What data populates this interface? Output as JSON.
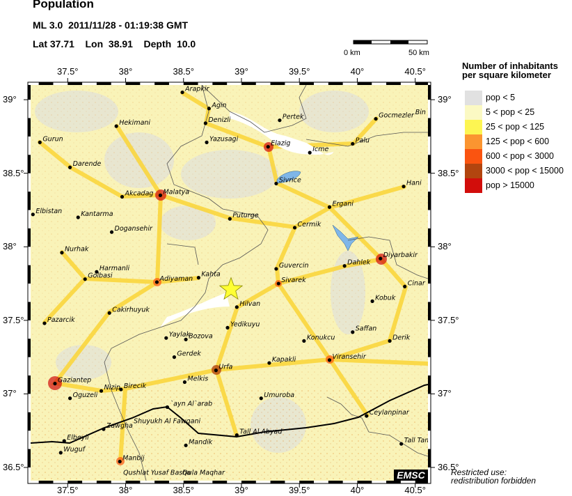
{
  "header": {
    "title": "Population",
    "event_line": "ML 3.0  2011/11/28 - 01:19:38 GMT",
    "location_line": "Lat 37.71    Lon  38.91    Depth  10.0"
  },
  "event": {
    "magnitude": "ML 3.0",
    "date": "2011/11/28",
    "time": "01:19:38 GMT",
    "lat": 37.71,
    "lon": 38.91,
    "depth": 10.0,
    "marker_color": "#ffff33"
  },
  "scale_bar": {
    "start_label": "0 km",
    "end_label": "50 km"
  },
  "axes": {
    "lon_ticks": [
      {
        "value": 37.5,
        "label": "37.5°"
      },
      {
        "value": 38,
        "label": "38°"
      },
      {
        "value": 38.5,
        "label": "38.5°"
      },
      {
        "value": 39,
        "label": "39°"
      },
      {
        "value": 39.5,
        "label": "39.5°"
      },
      {
        "value": 40,
        "label": "40°"
      },
      {
        "value": 40.5,
        "label": "40.5°"
      }
    ],
    "lat_ticks": [
      {
        "value": 39,
        "label": "39°"
      },
      {
        "value": 38.5,
        "label": "38.5°"
      },
      {
        "value": 38,
        "label": "38°"
      },
      {
        "value": 37.5,
        "label": "37.5°"
      },
      {
        "value": 37,
        "label": "37°"
      },
      {
        "value": 36.5,
        "label": "36.5°"
      }
    ],
    "lon_range": [
      37.18,
      40.61
    ],
    "lat_range": [
      36.41,
      39.1
    ]
  },
  "legend": {
    "title_line1": "Number of inhabitants",
    "title_line2": "per square kilometer",
    "items": [
      {
        "label": "pop < 5",
        "color": "#e1e1e1"
      },
      {
        "label": "5 < pop < 25",
        "color": "#fbf9c3"
      },
      {
        "label": "25 < pop < 125",
        "color": "#fdf552"
      },
      {
        "label": "125 < pop < 600",
        "color": "#fb9530"
      },
      {
        "label": "600 < pop < 3000",
        "color": "#fa5410"
      },
      {
        "label": "3000 < pop < 15000",
        "color": "#b2450f"
      },
      {
        "label": "pop > 15000",
        "color": "#d20d0b"
      }
    ]
  },
  "cities": [
    {
      "name": "Arapkir",
      "lon": 38.49,
      "lat": 39.05
    },
    {
      "name": "Agin",
      "lon": 38.72,
      "lat": 38.94
    },
    {
      "name": "Denizli",
      "lon": 38.69,
      "lat": 38.84
    },
    {
      "name": "Pertek",
      "lon": 39.33,
      "lat": 38.86
    },
    {
      "name": "Hekimani",
      "lon": 37.92,
      "lat": 38.82
    },
    {
      "name": "Gurun",
      "lon": 37.26,
      "lat": 38.71
    },
    {
      "name": "Yazusagi",
      "lon": 38.7,
      "lat": 38.71
    },
    {
      "name": "Elazig",
      "lon": 39.23,
      "lat": 38.68
    },
    {
      "name": "Icme",
      "lon": 39.59,
      "lat": 38.64
    },
    {
      "name": "Palu",
      "lon": 39.96,
      "lat": 38.7
    },
    {
      "name": "Gocmezler",
      "lon": 40.16,
      "lat": 38.87
    },
    {
      "name": "Darende",
      "lon": 37.52,
      "lat": 38.54
    },
    {
      "name": "Sivrice",
      "lon": 39.3,
      "lat": 38.43
    },
    {
      "name": "Hani",
      "lon": 40.4,
      "lat": 38.41
    },
    {
      "name": "Akcadag",
      "lon": 37.97,
      "lat": 38.34
    },
    {
      "name": "Malatya",
      "lon": 38.3,
      "lat": 38.35
    },
    {
      "name": "Elbistan",
      "lon": 37.2,
      "lat": 38.22
    },
    {
      "name": "Kantarma",
      "lon": 37.59,
      "lat": 38.2
    },
    {
      "name": "Puturge",
      "lon": 38.9,
      "lat": 38.19
    },
    {
      "name": "Ergani",
      "lon": 39.76,
      "lat": 38.27
    },
    {
      "name": "Cermik",
      "lon": 39.46,
      "lat": 38.13
    },
    {
      "name": "Dogansehir",
      "lon": 37.88,
      "lat": 38.1
    },
    {
      "name": "Nurhak",
      "lon": 37.45,
      "lat": 37.96
    },
    {
      "name": "Diyarbakir",
      "lon": 40.2,
      "lat": 37.92
    },
    {
      "name": "Harmanli",
      "lon": 37.75,
      "lat": 37.83
    },
    {
      "name": "Golbasi",
      "lon": 37.65,
      "lat": 37.78
    },
    {
      "name": "Adiyaman",
      "lon": 38.27,
      "lat": 37.76
    },
    {
      "name": "Kahta",
      "lon": 38.63,
      "lat": 37.79
    },
    {
      "name": "Guvercin",
      "lon": 39.3,
      "lat": 37.85
    },
    {
      "name": "Dahlek",
      "lon": 39.89,
      "lat": 37.87
    },
    {
      "name": "Sivarek",
      "lon": 39.32,
      "lat": 37.75
    },
    {
      "name": "Cinar",
      "lon": 40.41,
      "lat": 37.73
    },
    {
      "name": "Hilvan",
      "lon": 38.96,
      "lat": 37.59
    },
    {
      "name": "Kobuk",
      "lon": 40.13,
      "lat": 37.63
    },
    {
      "name": "Cakirhuyuk",
      "lon": 37.86,
      "lat": 37.55
    },
    {
      "name": "Pazarcik",
      "lon": 37.3,
      "lat": 37.48
    },
    {
      "name": "Yedikuyu",
      "lon": 38.88,
      "lat": 37.45
    },
    {
      "name": "Saffan",
      "lon": 39.96,
      "lat": 37.42
    },
    {
      "name": "Derik",
      "lon": 40.28,
      "lat": 37.36
    },
    {
      "name": "Yaylak",
      "lon": 38.35,
      "lat": 37.38
    },
    {
      "name": "Bozova",
      "lon": 38.52,
      "lat": 37.37
    },
    {
      "name": "Konukcu",
      "lon": 39.54,
      "lat": 37.36
    },
    {
      "name": "Gerdek",
      "lon": 38.42,
      "lat": 37.25
    },
    {
      "name": "Kapakli",
      "lon": 39.24,
      "lat": 37.21
    },
    {
      "name": "Viransehir",
      "lon": 39.76,
      "lat": 37.23
    },
    {
      "name": "Urfa",
      "lon": 38.78,
      "lat": 37.16
    },
    {
      "name": "Gaziantep",
      "lon": 37.39,
      "lat": 37.07
    },
    {
      "name": "Nizip",
      "lon": 37.79,
      "lat": 37.02
    },
    {
      "name": "Birecik",
      "lon": 37.96,
      "lat": 37.03
    },
    {
      "name": "Melkis",
      "lon": 38.51,
      "lat": 37.08
    },
    {
      "name": "Oguzeli",
      "lon": 37.52,
      "lat": 36.97
    },
    {
      "name": "Umuroba",
      "lon": 39.17,
      "lat": 36.97
    },
    {
      "name": "`ayn Al`arab",
      "lon": 38.36,
      "lat": 36.91
    },
    {
      "name": "Zawgha",
      "lon": 37.81,
      "lat": 36.76
    },
    {
      "name": "Elbeyli",
      "lon": 37.47,
      "lat": 36.68
    },
    {
      "name": "Wuguf",
      "lon": 37.44,
      "lat": 36.6
    },
    {
      "name": "Manbij",
      "lon": 37.95,
      "lat": 36.54
    },
    {
      "name": "Mandik",
      "lon": 38.52,
      "lat": 36.65
    },
    {
      "name": "Tall Al Abyad",
      "lon": 38.96,
      "lat": 36.72
    },
    {
      "name": "Ceylanpinar",
      "lon": 40.08,
      "lat": 36.85
    },
    {
      "name": "Tall Tam",
      "lon": 40.38,
      "lat": 36.66
    }
  ],
  "labels_without_marker": [
    {
      "name": "Bin",
      "lon": 40.5,
      "lat": 38.9
    },
    {
      "name": "Shuyukh Al Fawqani",
      "lon": 38.07,
      "lat": 36.8
    },
    {
      "name": "Qushlat Yusaf Basha",
      "lon": 37.98,
      "lat": 36.45
    },
    {
      "name": "Qula Maqhar",
      "lon": 38.49,
      "lat": 36.45
    }
  ],
  "logo": "EMSC",
  "note_line1": "Restricted use:",
  "note_line2": "redistribution forbidden",
  "colors": {
    "land_base": "#fbf6c8",
    "lake": "#7fb6e8",
    "border": "#000000",
    "admin_line": "#555555"
  }
}
